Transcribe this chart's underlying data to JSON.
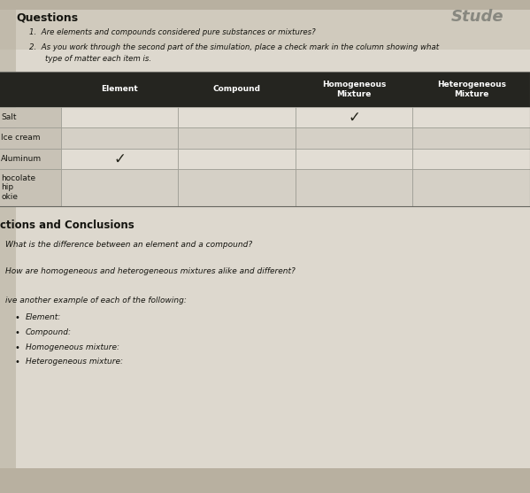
{
  "bg_color": "#b8b0a0",
  "page_light": "#ddd8ce",
  "page_mid": "#cac4b8",
  "title_top_right": "Stude",
  "questions_header": "Questions",
  "question1": "Are elements and compounds considered pure substances or mixtures?",
  "question2_a": "As you work through the second part of the simulation, place a check mark in the column showing what",
  "question2_b": "type of matter each item is.",
  "table_header_bg": "#252520",
  "table_header_color": "#ffffff",
  "table_columns": [
    "Element",
    "Compound",
    "Homogeneous\nMixture",
    "Heterogeneous\nMixture"
  ],
  "table_rows": [
    "Salt",
    "Ice cream",
    "Aluminum",
    "hocolate\nhip\nokie"
  ],
  "checkmarks": [
    [
      false,
      false,
      true,
      false
    ],
    [
      false,
      false,
      false,
      false
    ],
    [
      true,
      false,
      false,
      false
    ],
    [
      false,
      false,
      false,
      false
    ]
  ],
  "section_header": "ctions and Conclusions",
  "q3": "What is the difference between an element and a compound?",
  "q4": "How are homogeneous and heterogeneous mixtures alike and different?",
  "q5_intro": "ive another example of each of the following:",
  "bullets": [
    "Element:",
    "Compound:",
    "Homogeneous mixture:",
    "Heterogeneous mixture:"
  ],
  "row_alt_colors": [
    "#e2ddd4",
    "#d5d0c6",
    "#e2ddd4",
    "#d5d0c6"
  ],
  "left_col_color": "#c8c2b6",
  "cell_line_color": "#999990",
  "text_dark": "#151510",
  "text_medium": "#2a2a20"
}
